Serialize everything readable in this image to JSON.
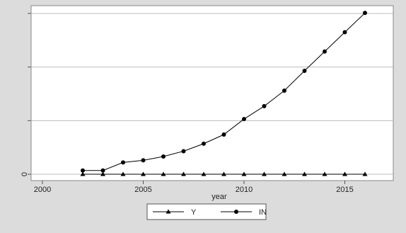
{
  "chart_data": {
    "type": "line",
    "xlabel": "year",
    "ylabel": "",
    "xlim": [
      2000,
      2016
    ],
    "ylim": [
      0,
      3
    ],
    "x_ticks": [
      2000,
      2005,
      2010,
      2015
    ],
    "y_ticks": [
      0,
      1,
      2,
      3
    ],
    "y_tick_labels": [
      "0",
      "",
      "",
      ""
    ],
    "grid": "horizontal",
    "legend_position": "bottom",
    "x": [
      2002,
      2003,
      2004,
      2005,
      2006,
      2007,
      2008,
      2009,
      2010,
      2011,
      2012,
      2013,
      2014,
      2015,
      2016
    ],
    "series": [
      {
        "name": "Y",
        "marker": "triangle",
        "color": "#000000",
        "values": [
          0,
          0,
          0,
          0,
          0,
          0,
          0,
          0,
          0,
          0,
          0,
          0,
          0,
          0,
          0
        ]
      },
      {
        "name": "IN",
        "marker": "circle",
        "color": "#000000",
        "values": [
          0.07,
          0.07,
          0.22,
          0.26,
          0.33,
          0.43,
          0.57,
          0.74,
          1.03,
          1.27,
          1.56,
          1.93,
          2.29,
          2.65,
          3.01
        ]
      }
    ]
  }
}
